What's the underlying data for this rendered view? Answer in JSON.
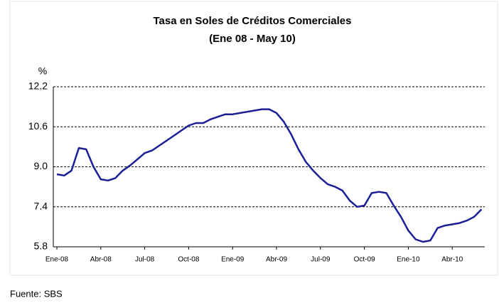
{
  "chart_data": {
    "type": "line",
    "title": "Tasa en Soles de Créditos Comerciales",
    "subtitle": "(Ene 08 - May 10)",
    "y_label": "%",
    "source": "Fuente: SBS",
    "categories": [
      "Ene-08",
      null,
      null,
      null,
      null,
      null,
      "Abr-08",
      null,
      null,
      null,
      null,
      null,
      "Jul-08",
      null,
      null,
      null,
      null,
      null,
      "Oct-08",
      null,
      null,
      null,
      null,
      null,
      "Ene-09",
      null,
      null,
      null,
      null,
      null,
      "Abr-09",
      null,
      null,
      null,
      null,
      null,
      "Jul-09",
      null,
      null,
      null,
      null,
      null,
      "Oct-09",
      null,
      null,
      null,
      null,
      null,
      "Ene-10",
      null,
      null,
      null,
      null,
      null,
      "Abr-10",
      null,
      null,
      null,
      null
    ],
    "values": [
      8.7,
      8.65,
      8.85,
      9.75,
      9.7,
      9.0,
      8.5,
      8.45,
      8.55,
      8.85,
      9.05,
      9.3,
      9.55,
      9.65,
      9.85,
      10.05,
      10.25,
      10.45,
      10.65,
      10.75,
      10.75,
      10.9,
      11.0,
      11.1,
      11.1,
      11.15,
      11.2,
      11.25,
      11.3,
      11.3,
      11.15,
      10.8,
      10.3,
      9.7,
      9.2,
      8.85,
      8.55,
      8.3,
      8.2,
      8.05,
      7.65,
      7.4,
      7.45,
      7.95,
      8.0,
      7.95,
      7.45,
      7.0,
      6.45,
      6.1,
      6.0,
      6.05,
      6.55,
      6.65,
      6.7,
      6.75,
      6.85,
      7.0,
      7.3
    ],
    "color": "#1a1f96",
    "ylim": [
      5.8,
      12.2
    ],
    "yticks": [
      {
        "value": 5.8,
        "label": "5.8"
      },
      {
        "value": 7.4,
        "label": "7.4"
      },
      {
        "value": 9.0,
        "label": "9.0"
      },
      {
        "value": 10.6,
        "label": "10.6"
      },
      {
        "value": 12.2,
        "label": "12.2"
      }
    ],
    "grid": true
  }
}
